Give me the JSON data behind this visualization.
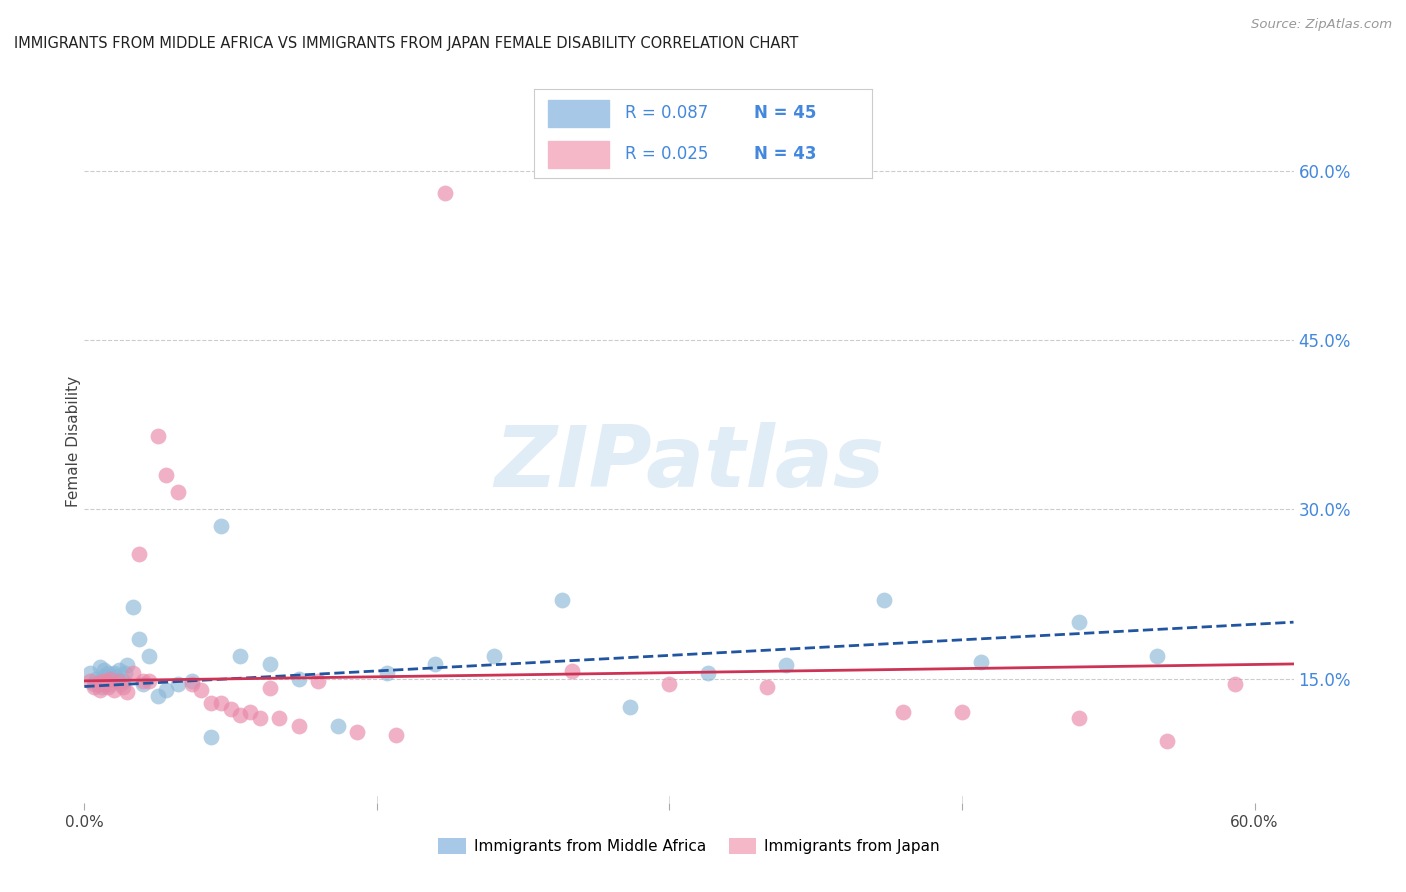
{
  "title": "IMMIGRANTS FROM MIDDLE AFRICA VS IMMIGRANTS FROM JAPAN FEMALE DISABILITY CORRELATION CHART",
  "source": "Source: ZipAtlas.com",
  "ylabel": "Female Disability",
  "ytick_labels": [
    "15.0%",
    "30.0%",
    "45.0%",
    "60.0%"
  ],
  "ytick_values": [
    0.15,
    0.3,
    0.45,
    0.6
  ],
  "xtick_labels": [
    "0.0%",
    "60.0%"
  ],
  "xtick_values": [
    0.0,
    0.6
  ],
  "xlim": [
    0.0,
    0.62
  ],
  "ylim": [
    0.04,
    0.68
  ],
  "legend": {
    "series1_label": "Immigrants from Middle Africa",
    "series1_color": "#a8c8e8",
    "series1_R": "R = 0.087",
    "series1_N": "N = 45",
    "series2_label": "Immigrants from Japan",
    "series2_color": "#f5b8c8",
    "series2_R": "R = 0.025",
    "series2_N": "N = 43"
  },
  "watermark_text": "ZIPatlas",
  "blue_scatter_x": [
    0.003,
    0.005,
    0.006,
    0.008,
    0.008,
    0.009,
    0.01,
    0.01,
    0.011,
    0.012,
    0.013,
    0.014,
    0.015,
    0.016,
    0.017,
    0.018,
    0.019,
    0.02,
    0.021,
    0.022,
    0.025,
    0.028,
    0.03,
    0.033,
    0.038,
    0.042,
    0.048,
    0.055,
    0.065,
    0.07,
    0.08,
    0.095,
    0.11,
    0.13,
    0.155,
    0.18,
    0.21,
    0.245,
    0.28,
    0.32,
    0.36,
    0.41,
    0.46,
    0.51,
    0.55
  ],
  "blue_scatter_y": [
    0.155,
    0.145,
    0.15,
    0.16,
    0.148,
    0.143,
    0.152,
    0.158,
    0.148,
    0.155,
    0.145,
    0.15,
    0.155,
    0.152,
    0.148,
    0.158,
    0.145,
    0.148,
    0.155,
    0.162,
    0.213,
    0.185,
    0.145,
    0.17,
    0.135,
    0.14,
    0.145,
    0.148,
    0.098,
    0.285,
    0.17,
    0.163,
    0.15,
    0.108,
    0.155,
    0.163,
    0.17,
    0.22,
    0.125,
    0.155,
    0.162,
    0.22,
    0.165,
    0.2,
    0.17
  ],
  "pink_scatter_x": [
    0.003,
    0.005,
    0.007,
    0.008,
    0.009,
    0.01,
    0.011,
    0.012,
    0.013,
    0.015,
    0.018,
    0.02,
    0.022,
    0.025,
    0.028,
    0.03,
    0.033,
    0.038,
    0.042,
    0.048,
    0.055,
    0.06,
    0.065,
    0.07,
    0.075,
    0.08,
    0.085,
    0.09,
    0.095,
    0.1,
    0.11,
    0.12,
    0.14,
    0.16,
    0.185,
    0.25,
    0.3,
    0.35,
    0.42,
    0.45,
    0.51,
    0.555,
    0.59
  ],
  "pink_scatter_y": [
    0.148,
    0.143,
    0.145,
    0.14,
    0.148,
    0.145,
    0.148,
    0.143,
    0.15,
    0.14,
    0.148,
    0.143,
    0.138,
    0.155,
    0.26,
    0.148,
    0.148,
    0.365,
    0.33,
    0.315,
    0.145,
    0.14,
    0.128,
    0.128,
    0.123,
    0.118,
    0.12,
    0.115,
    0.142,
    0.115,
    0.108,
    0.148,
    0.103,
    0.1,
    0.58,
    0.157,
    0.145,
    0.143,
    0.12,
    0.12,
    0.115,
    0.095,
    0.145
  ],
  "blue_line_x": [
    0.0,
    0.62
  ],
  "blue_line_y": [
    0.143,
    0.2
  ],
  "pink_line_x": [
    0.0,
    0.62
  ],
  "pink_line_y": [
    0.148,
    0.163
  ],
  "blue_dot_color": "#8ab8d8",
  "pink_dot_color": "#e888a8",
  "blue_line_color": "#2255a0",
  "pink_line_color": "#cc3355",
  "blue_line_style": "--",
  "pink_line_style": "-",
  "grid_color": "#cccccc",
  "bg_color": "#ffffff",
  "right_ytick_color": "#4488dd",
  "title_color": "#222222",
  "source_color": "#999999"
}
